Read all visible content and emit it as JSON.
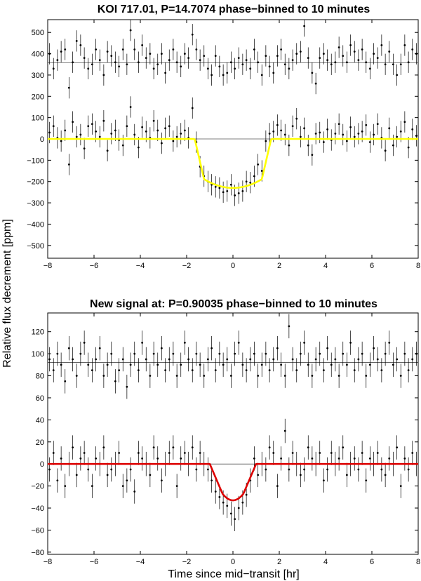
{
  "figure": {
    "ylabel": "Relative flux decrement [ppm]",
    "xlabel": "Time since mid−transit [hr]"
  },
  "chart_data": [
    {
      "type": "scatter",
      "title": "KOI 717.01, P=14.7074 phase−binned to 10 minutes",
      "xlim": [
        -8,
        8
      ],
      "ylim": [
        -560,
        560
      ],
      "xticks": [
        -8,
        -6,
        -4,
        -2,
        0,
        2,
        4,
        6,
        8
      ],
      "xtick_labels": [
        "−8",
        "−6",
        "−4",
        "−2",
        "0",
        "2",
        "4",
        "6",
        "8"
      ],
      "yticks": [
        500,
        400,
        300,
        200,
        100,
        0,
        -100,
        -200,
        -300,
        -400,
        -500
      ],
      "ytick_labels": [
        "500",
        "400",
        "300",
        "200",
        "100",
        "0",
        "−100",
        "−200",
        "−300",
        "−400",
        "−500"
      ],
      "grid": false,
      "reference_lines": [
        0,
        357
      ],
      "series": [
        {
          "kind": "binned_points_with_errorbars",
          "x": [
            -7.92,
            -7.75,
            -7.58,
            -7.42,
            -7.25,
            -7.08,
            -6.92,
            -6.75,
            -6.58,
            -6.42,
            -6.25,
            -6.08,
            -5.92,
            -5.75,
            -5.58,
            -5.42,
            -5.25,
            -5.08,
            -4.92,
            -4.75,
            -4.58,
            -4.42,
            -4.25,
            -4.08,
            -3.92,
            -3.75,
            -3.58,
            -3.42,
            -3.25,
            -3.08,
            -2.92,
            -2.75,
            -2.58,
            -2.42,
            -2.25,
            -2.08,
            -1.92,
            -1.75,
            -1.58,
            -1.42,
            -1.25,
            -1.08,
            -0.92,
            -0.75,
            -0.58,
            -0.42,
            -0.25,
            -0.08,
            0.08,
            0.25,
            0.42,
            0.58,
            0.75,
            0.92,
            1.08,
            1.25,
            1.42,
            1.58,
            1.75,
            1.92,
            2.08,
            2.25,
            2.42,
            2.58,
            2.75,
            2.92,
            3.08,
            3.25,
            3.42,
            3.58,
            3.75,
            3.92,
            4.08,
            4.25,
            4.42,
            4.58,
            4.75,
            4.92,
            5.08,
            5.25,
            5.42,
            5.58,
            5.75,
            5.92,
            6.08,
            6.25,
            6.42,
            6.58,
            6.75,
            6.92,
            7.08,
            7.25,
            7.42,
            7.58,
            7.75,
            7.92
          ],
          "y": [
            30,
            60,
            5,
            -10,
            40,
            -120,
            80,
            10,
            20,
            -45,
            60,
            70,
            35,
            10,
            85,
            -55,
            25,
            40,
            -5,
            -30,
            60,
            150,
            20,
            -40,
            55,
            35,
            5,
            85,
            40,
            -20,
            50,
            60,
            -10,
            10,
            25,
            40,
            5,
            145,
            -15,
            -130,
            -175,
            -200,
            -215,
            -225,
            -230,
            -250,
            -245,
            -215,
            -265,
            -255,
            -245,
            -200,
            -205,
            -175,
            -120,
            -150,
            -10,
            25,
            35,
            65,
            40,
            20,
            -30,
            60,
            95,
            10,
            50,
            -30,
            -75,
            25,
            30,
            -15,
            45,
            -5,
            25,
            70,
            20,
            -10,
            55,
            10,
            25,
            35,
            65,
            -15,
            20,
            70,
            5,
            -55,
            50,
            -30,
            10,
            35,
            80,
            -40,
            45,
            15
          ],
          "err": 50
        },
        {
          "kind": "binned_points_with_errorbars",
          "description_of_offset": "upper row plotted around offset line",
          "x": [
            -7.92,
            -7.75,
            -7.58,
            -7.42,
            -7.25,
            -7.08,
            -6.92,
            -6.75,
            -6.58,
            -6.42,
            -6.25,
            -6.08,
            -5.92,
            -5.75,
            -5.58,
            -5.42,
            -5.25,
            -5.08,
            -4.92,
            -4.75,
            -4.58,
            -4.42,
            -4.25,
            -4.08,
            -3.92,
            -3.75,
            -3.58,
            -3.42,
            -3.25,
            -3.08,
            -2.92,
            -2.75,
            -2.58,
            -2.42,
            -2.25,
            -2.08,
            -1.92,
            -1.75,
            -1.58,
            -1.42,
            -1.25,
            -1.08,
            -0.92,
            -0.75,
            -0.58,
            -0.42,
            -0.25,
            -0.08,
            0.08,
            0.25,
            0.42,
            0.58,
            0.75,
            0.92,
            1.08,
            1.25,
            1.42,
            1.58,
            1.75,
            1.92,
            2.08,
            2.25,
            2.42,
            2.58,
            2.75,
            2.92,
            3.08,
            3.25,
            3.42,
            3.58,
            3.75,
            3.92,
            4.08,
            4.25,
            4.42,
            4.58,
            4.75,
            4.92,
            5.08,
            5.25,
            5.42,
            5.58,
            5.75,
            5.92,
            6.08,
            6.25,
            6.42,
            6.58,
            6.75,
            6.92,
            7.08,
            7.25,
            7.42,
            7.58,
            7.75,
            7.92
          ],
          "y": [
            400,
            330,
            370,
            410,
            420,
            240,
            360,
            460,
            440,
            380,
            330,
            350,
            420,
            370,
            300,
            410,
            390,
            360,
            340,
            420,
            350,
            510,
            420,
            360,
            440,
            380,
            400,
            330,
            350,
            400,
            310,
            370,
            420,
            360,
            340,
            400,
            380,
            490,
            420,
            370,
            390,
            330,
            300,
            390,
            340,
            300,
            310,
            360,
            330,
            380,
            350,
            370,
            330,
            420,
            360,
            300,
            390,
            340,
            310,
            390,
            420,
            350,
            330,
            370,
            400,
            410,
            530,
            380,
            310,
            260,
            380,
            400,
            370,
            350,
            360,
            430,
            390,
            360,
            440,
            410,
            370,
            420,
            360,
            330,
            400,
            380,
            440,
            350,
            410,
            350,
            300,
            350,
            440,
            360,
            420,
            400
          ],
          "err": 50
        },
        {
          "kind": "model_line",
          "color": "#ffff00",
          "depth": -230,
          "t_contact1": -1.65,
          "t_contact2": -1.25,
          "t_contact3": 1.25,
          "t_contact4": 1.65
        }
      ]
    },
    {
      "type": "scatter",
      "title": "New signal at: P=0.90035 phase−binned to 10 minutes",
      "xlim": [
        -8,
        8
      ],
      "ylim": [
        -82,
        137
      ],
      "xticks": [
        -8,
        -6,
        -4,
        -2,
        0,
        2,
        4,
        6,
        8
      ],
      "xtick_labels": [
        "−8",
        "−6",
        "−4",
        "−2",
        "0",
        "2",
        "4",
        "6",
        "8"
      ],
      "yticks": [
        120,
        100,
        80,
        60,
        40,
        20,
        0,
        -20,
        -40,
        -60,
        -80
      ],
      "ytick_labels": [
        "120",
        "100",
        "80",
        "60",
        "40",
        "20",
        "0",
        "−20",
        "−40",
        "−60",
        "−80"
      ],
      "grid": false,
      "reference_lines": [
        0,
        92
      ],
      "series": [
        {
          "kind": "binned_points_with_errorbars",
          "x": [
            -7.92,
            -7.75,
            -7.58,
            -7.42,
            -7.25,
            -7.08,
            -6.92,
            -6.75,
            -6.58,
            -6.42,
            -6.25,
            -6.08,
            -5.92,
            -5.75,
            -5.58,
            -5.42,
            -5.25,
            -5.08,
            -4.92,
            -4.75,
            -4.58,
            -4.42,
            -4.25,
            -4.08,
            -3.92,
            -3.75,
            -3.58,
            -3.42,
            -3.25,
            -3.08,
            -2.92,
            -2.75,
            -2.58,
            -2.42,
            -2.25,
            -2.08,
            -1.92,
            -1.75,
            -1.58,
            -1.42,
            -1.25,
            -1.08,
            -0.92,
            -0.75,
            -0.58,
            -0.42,
            -0.25,
            -0.08,
            0.08,
            0.25,
            0.42,
            0.58,
            0.75,
            0.92,
            1.08,
            1.25,
            1.42,
            1.58,
            1.75,
            1.92,
            2.08,
            2.25,
            2.42,
            2.58,
            2.75,
            2.92,
            3.08,
            3.25,
            3.42,
            3.58,
            3.75,
            3.92,
            4.08,
            4.25,
            4.42,
            4.58,
            4.75,
            4.92,
            5.08,
            5.25,
            5.42,
            5.58,
            5.75,
            5.92,
            6.08,
            6.25,
            6.42,
            6.58,
            6.75,
            6.92,
            7.08,
            7.25,
            7.42,
            7.58,
            7.75,
            7.92
          ],
          "y": [
            -5,
            10,
            -15,
            5,
            -20,
            0,
            15,
            -10,
            5,
            10,
            -5,
            -20,
            5,
            0,
            15,
            -10,
            -5,
            0,
            10,
            -20,
            -15,
            -5,
            -25,
            10,
            5,
            0,
            -10,
            15,
            5,
            -15,
            0,
            10,
            15,
            -20,
            5,
            10,
            0,
            15,
            -5,
            10,
            0,
            -5,
            -15,
            -25,
            -30,
            -35,
            -38,
            -45,
            -50,
            -40,
            -35,
            -28,
            -15,
            5,
            -10,
            0,
            -5,
            15,
            10,
            -20,
            5,
            30,
            -5,
            10,
            0,
            -10,
            -5,
            15,
            5,
            0,
            10,
            -15,
            -5,
            10,
            0,
            5,
            15,
            -10,
            0,
            5,
            -5,
            10,
            -15,
            5,
            0,
            10,
            -5,
            -10,
            5,
            0,
            15,
            -20,
            5,
            -5,
            10,
            0
          ],
          "err": 11
        },
        {
          "kind": "binned_points_with_errorbars",
          "x": [
            -7.92,
            -7.75,
            -7.58,
            -7.42,
            -7.25,
            -7.08,
            -6.92,
            -6.75,
            -6.58,
            -6.42,
            -6.25,
            -6.08,
            -5.92,
            -5.75,
            -5.58,
            -5.42,
            -5.25,
            -5.08,
            -4.92,
            -4.75,
            -4.58,
            -4.42,
            -4.25,
            -4.08,
            -3.92,
            -3.75,
            -3.58,
            -3.42,
            -3.25,
            -3.08,
            -2.92,
            -2.75,
            -2.58,
            -2.42,
            -2.25,
            -2.08,
            -1.92,
            -1.75,
            -1.58,
            -1.42,
            -1.25,
            -1.08,
            -0.92,
            -0.75,
            -0.58,
            -0.42,
            -0.25,
            -0.08,
            0.08,
            0.25,
            0.42,
            0.58,
            0.75,
            0.92,
            1.08,
            1.25,
            1.42,
            1.58,
            1.75,
            1.92,
            2.08,
            2.25,
            2.42,
            2.58,
            2.75,
            2.92,
            3.08,
            3.25,
            3.42,
            3.58,
            3.75,
            3.92,
            4.08,
            4.25,
            4.42,
            4.58,
            4.75,
            4.92,
            5.08,
            5.25,
            5.42,
            5.58,
            5.75,
            5.92,
            6.08,
            6.25,
            6.42,
            6.58,
            6.75,
            6.92,
            7.08,
            7.25,
            7.42,
            7.58,
            7.75,
            7.92
          ],
          "y": [
            95,
            85,
            100,
            90,
            75,
            105,
            95,
            80,
            100,
            110,
            90,
            85,
            95,
            105,
            80,
            90,
            100,
            75,
            85,
            95,
            70,
            90,
            100,
            85,
            110,
            95,
            80,
            100,
            90,
            105,
            85,
            95,
            100,
            80,
            90,
            110,
            95,
            85,
            100,
            90,
            80,
            95,
            105,
            85,
            100,
            90,
            95,
            80,
            100,
            110,
            90,
            85,
            95,
            100,
            80,
            90,
            100,
            85,
            95,
            105,
            90,
            80,
            125,
            95,
            85,
            100,
            110,
            90,
            80,
            95,
            100,
            85,
            105,
            90,
            95,
            80,
            100,
            90,
            110,
            85,
            95,
            100,
            80,
            90,
            105,
            95,
            85,
            100,
            110,
            90,
            95,
            80,
            100,
            85,
            95,
            100
          ],
          "err": 11
        },
        {
          "kind": "model_line",
          "color": "#dd0000",
          "depth": -33,
          "t_contact1": -1.0,
          "t_contact2": -0.45,
          "t_contact3": 0.45,
          "t_contact4": 1.0
        }
      ]
    }
  ]
}
